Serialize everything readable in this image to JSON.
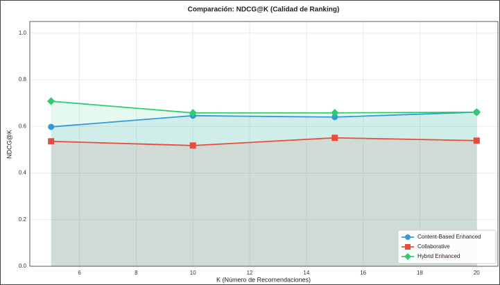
{
  "chart_data": {
    "type": "line",
    "title": "Comparación: NDCG@K (Calidad de Ranking)",
    "xlabel": "K (Número de Recomendaciones)",
    "ylabel": "NDCG@K",
    "x": [
      5,
      10,
      15,
      20
    ],
    "series": [
      {
        "name": "Content-Based Enhanced",
        "color": "#3498db",
        "marker": "circle",
        "values": [
          0.598,
          0.646,
          0.64,
          0.661
        ]
      },
      {
        "name": "Collaborative",
        "color": "#e74c3c",
        "marker": "square",
        "values": [
          0.536,
          0.518,
          0.551,
          0.539
        ]
      },
      {
        "name": "Hybrid Enhanced",
        "color": "#2ecc71",
        "marker": "diamond",
        "values": [
          0.708,
          0.658,
          0.658,
          0.661
        ]
      }
    ],
    "xlim": [
      4.25,
      20.75
    ],
    "xticks": [
      6,
      8,
      10,
      12,
      14,
      16,
      18,
      20
    ],
    "ylim": [
      0,
      1.05
    ],
    "yticks": [
      {
        "value": 0,
        "label": "0.0"
      },
      0.2,
      0.4,
      0.6,
      0.8,
      {
        "value": 1,
        "label": "1.0"
      }
    ],
    "grid": true,
    "fill": true,
    "legend": "lower right"
  }
}
